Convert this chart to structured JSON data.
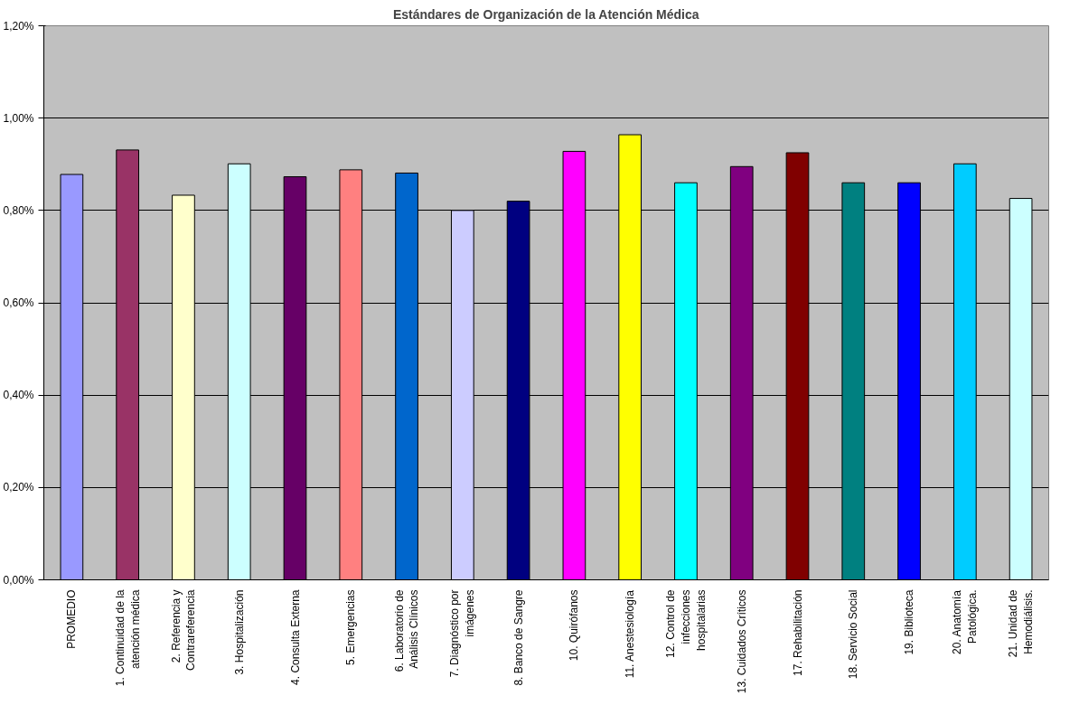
{
  "chart_data": {
    "type": "bar",
    "title": "Estándares de Organización de la Atención Médica",
    "categories": [
      "PROMEDIO",
      "1. Continuidad de la\natención médica",
      "2. Referencia y\nContrareferencia",
      "3. Hospitalización",
      "4. Consulta Externa",
      "5. Emergencias",
      "6. Laboratorio de\nAnálisis Clínicos",
      "7. Diagnóstico por\nimágenes",
      "8. Banco de Sangre",
      "10. Quirófanos",
      "11. Anestesiología",
      "12. Control de\ninfecciones\nhospitalarias",
      "13. Cuidados Críticos",
      "17. Rehabilitación",
      "18. Servicio Social",
      "19. Biblioteca",
      "20. Anatomía\nPatológica.",
      "21. Unidad de\nHemodiálisis."
    ],
    "values": [
      0.878,
      0.931,
      0.833,
      0.901,
      0.873,
      0.888,
      0.881,
      0.8,
      0.82,
      0.928,
      0.964,
      0.86,
      0.895,
      0.925,
      0.86,
      0.86,
      0.901,
      0.826
    ],
    "colors": [
      "#9999ff",
      "#993366",
      "#ffffcc",
      "#ccffff",
      "#660066",
      "#ff8080",
      "#0066cc",
      "#ccccff",
      "#000080",
      "#ff00ff",
      "#ffff00",
      "#00ffff",
      "#800080",
      "#800000",
      "#008080",
      "#0000ff",
      "#00ccff",
      "#ccffff"
    ],
    "ylim": [
      0,
      1.2
    ],
    "yticks": [
      {
        "value": 0,
        "label": "0,00%"
      },
      {
        "value": 0.2,
        "label": "0,20%"
      },
      {
        "value": 0.4,
        "label": "0,40%"
      },
      {
        "value": 0.6,
        "label": "0,60%"
      },
      {
        "value": 0.8,
        "label": "0,80%"
      },
      {
        "value": 1.0,
        "label": "1,00%"
      },
      {
        "value": 1.2,
        "label": "1,20%"
      }
    ],
    "grid": "y"
  }
}
